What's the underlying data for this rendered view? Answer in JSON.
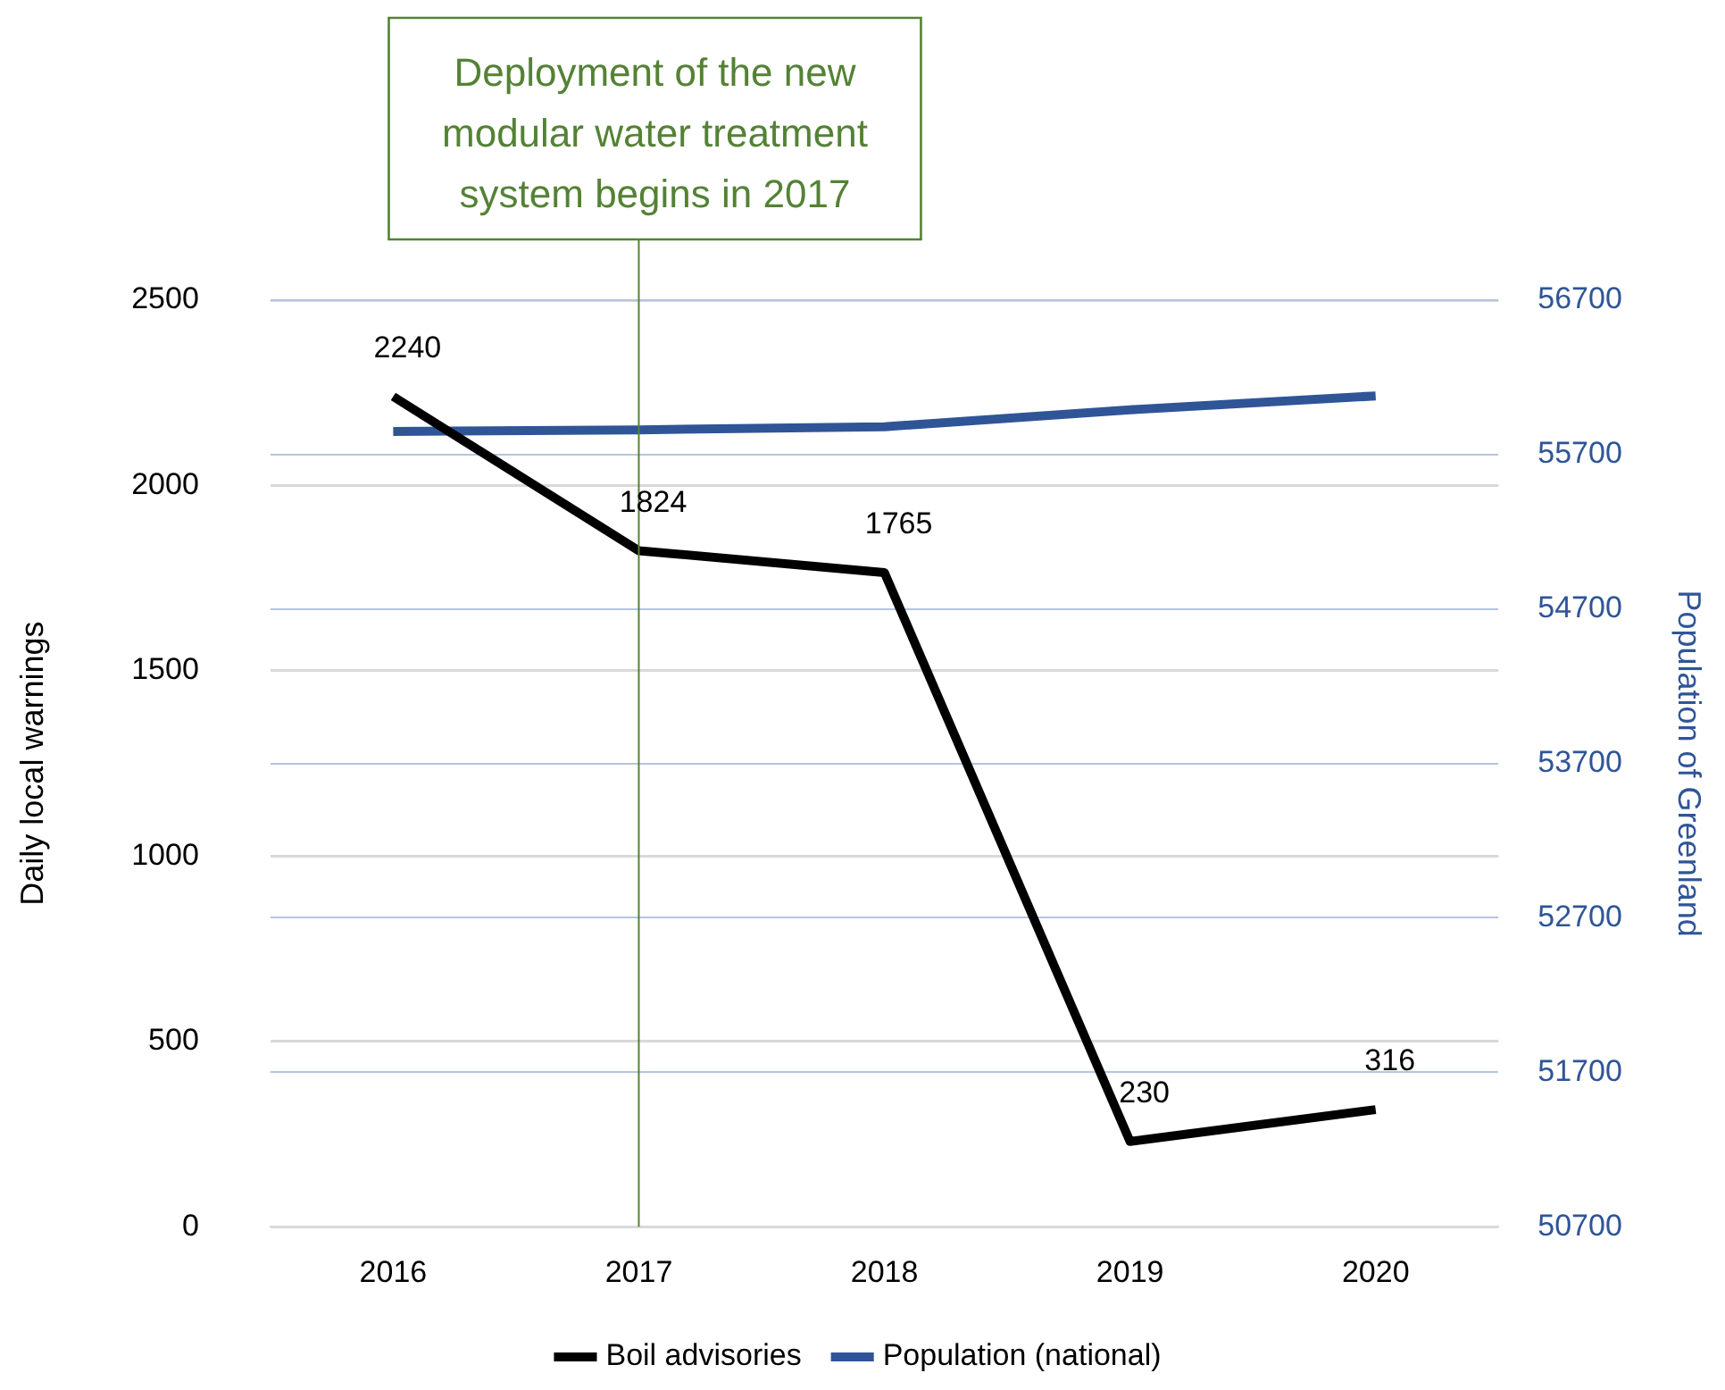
{
  "chart_data": {
    "type": "line",
    "categories": [
      "2016",
      "2017",
      "2018",
      "2019",
      "2020"
    ],
    "series": [
      {
        "name": "Boil advisories",
        "color": "#000000",
        "values": [
          2240,
          1824,
          1765,
          230,
          316
        ],
        "value_labels": [
          "2240",
          "1824",
          "1765",
          "230",
          "316"
        ]
      },
      {
        "name": "Population (national)",
        "color": "#2f5597",
        "axis": "y2",
        "values": [
          55850,
          55860,
          55880,
          55990,
          56080
        ]
      }
    ],
    "ylabel": "Daily local warnings",
    "y2label": "Population of Greenland",
    "ylim": [
      0,
      2500
    ],
    "yticks": [
      0,
      500,
      1000,
      1500,
      2000,
      2500
    ],
    "y2lim": [
      50700,
      56700
    ],
    "y2ticks": [
      50700,
      51700,
      52700,
      53700,
      54700,
      55700,
      56700
    ],
    "ref_lines": [
      {
        "axis": "x",
        "value": "2017",
        "label": "Deployment of the new modular water treatment system begins in 2017",
        "color": "#548235"
      }
    ],
    "grid": "y",
    "legend": "bottom",
    "marker": "none",
    "line_style": "solid"
  }
}
